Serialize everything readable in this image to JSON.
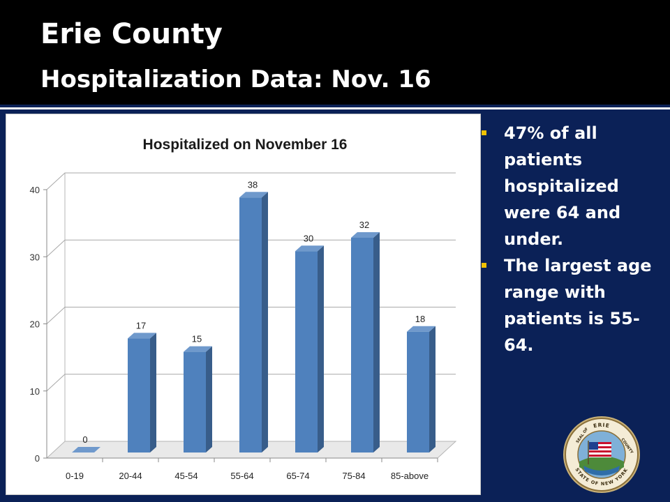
{
  "slide": {
    "title_line1": "Erie County",
    "title_line2": "Hospitalization Data: Nov. 16"
  },
  "bullets": [
    "47% of all patients hospitalized were 64 and under.",
    "The largest age range with patients is 55-64."
  ],
  "seal": {
    "top_text": "ERIE",
    "left_text": "SEAL OF",
    "right_text": "COUNTY",
    "bottom_text": "STATE OF NEW YORK"
  },
  "colors": {
    "background": "#0b2157",
    "title_bar": "#000000",
    "bullet_marker": "#f2c200",
    "bar_front": "#4f81bd",
    "bar_side": "#385d8a",
    "bar_top": "#6f99cc"
  },
  "chart_data": {
    "type": "bar",
    "title": "Hospitalized on November 16",
    "categories": [
      "0-19",
      "20-44",
      "45-54",
      "55-64",
      "65-74",
      "75-84",
      "85-above"
    ],
    "values": [
      0,
      17,
      15,
      38,
      30,
      32,
      18
    ],
    "data_labels": [
      "0",
      "17",
      "15",
      "38",
      "30",
      "32",
      "18"
    ],
    "xlabel": "",
    "ylabel": "",
    "ylim": [
      0,
      40
    ],
    "y_ticks": [
      0,
      10,
      20,
      30,
      40
    ],
    "y_tick_labels": [
      "0",
      "10",
      "20",
      "30",
      "40"
    ],
    "grid": true,
    "legend": "none",
    "style": "3d-column"
  }
}
